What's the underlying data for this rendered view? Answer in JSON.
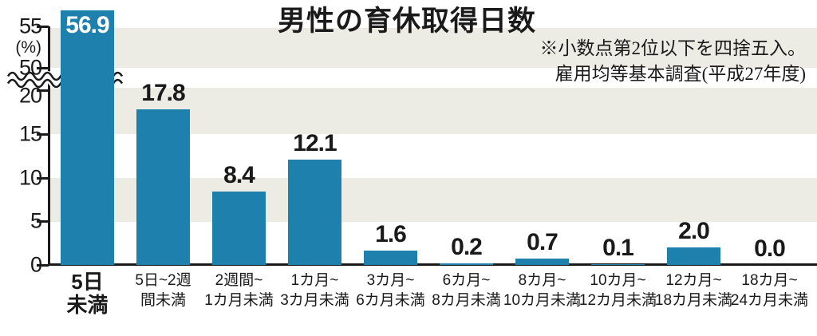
{
  "title": "男性の育休取得日数",
  "note": {
    "line1": "※小数点第2位以下を四捨五入。",
    "line2": "雇用均等基本調査(平成27年度)"
  },
  "chart_data": {
    "type": "bar",
    "title": "男性の育休取得日数",
    "categories": [
      [
        "5日",
        "未満"
      ],
      [
        "5日~2週",
        "間未満"
      ],
      [
        "2週間~",
        "1カ月未満"
      ],
      [
        "1カ月~",
        "3カ月未満"
      ],
      [
        "3カ月~",
        "6カ月未満"
      ],
      [
        "6カ月~",
        "8カ月未満"
      ],
      [
        "8カ月~",
        "10カ月未満"
      ],
      [
        "10カ月~",
        "12カ月未満"
      ],
      [
        "12カ月~",
        "18カ月未満"
      ],
      [
        "18カ月~",
        "24カ月未満"
      ]
    ],
    "values": [
      56.9,
      17.8,
      8.4,
      12.1,
      1.6,
      0.2,
      0.7,
      0.1,
      2.0,
      0.0
    ],
    "value_labels": [
      "56.9",
      "17.8",
      "8.4",
      "12.1",
      "1.6",
      "0.2",
      "0.7",
      "0.1",
      "2.0",
      "0.0"
    ],
    "xlabel": "",
    "ylabel": "%",
    "y_axis": {
      "unit_label": "(%)",
      "tick_values": [
        55,
        50,
        20,
        15,
        10,
        5,
        0
      ],
      "axis_break_between": [
        20,
        50
      ],
      "ylim": [
        0,
        57.5
      ]
    },
    "grid": "alternating horizontal gray bands",
    "legend": "none",
    "value_label_style": "first value shown in white inside bar, others black above bars"
  },
  "colors": {
    "bar": "#1e81ad",
    "stripe": "#ecebe4",
    "axis": "#1a1a1a",
    "text": "#1a1a1a",
    "value_inside": "#ffffff"
  }
}
